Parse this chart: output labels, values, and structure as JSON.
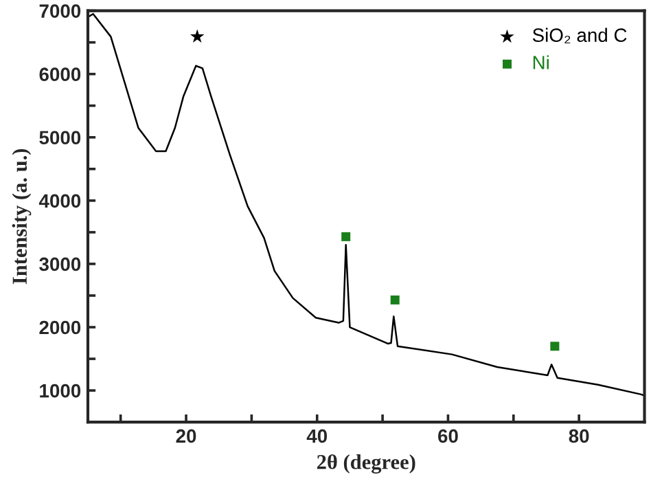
{
  "chart_data": {
    "type": "line",
    "xlabel": "2θ (degree)",
    "ylabel": "Intensity (a. u.)",
    "xlim": [
      5,
      90
    ],
    "ylim": [
      500,
      7000
    ],
    "xticks": [
      {
        "value": 10,
        "label": null
      },
      20,
      {
        "value": 30,
        "label": null
      },
      40,
      {
        "value": 50,
        "label": null
      },
      60,
      {
        "value": 70,
        "label": null
      },
      80
    ],
    "yticks": [
      1000,
      {
        "value": 1500,
        "label": null
      },
      2000,
      {
        "value": 2500,
        "label": null
      },
      3000,
      {
        "value": 3500,
        "label": null
      },
      4000,
      {
        "value": 4500,
        "label": null
      },
      5000,
      {
        "value": 5500,
        "label": null
      },
      6000,
      {
        "value": 6500,
        "label": null
      },
      7000
    ],
    "grid": false,
    "legend": "top right",
    "series": [
      {
        "color": "#000000",
        "marker": "none",
        "line_style": "solid",
        "x": [
          5.0,
          5.8,
          8.5,
          10.6,
          12.7,
          15.4,
          16.9,
          18.3,
          19.6,
          21.5,
          22.5,
          23.8,
          26.7,
          29.4,
          31.9,
          33.5,
          36.3,
          39.8,
          43.3,
          44.0,
          44.4,
          45.0,
          50.8,
          51.3,
          51.7,
          52.3,
          60.6,
          67.5,
          75.2,
          75.8,
          76.7,
          82.9,
          89.4,
          90.0
        ],
        "values": [
          6900,
          6950,
          6590,
          5870,
          5150,
          4780,
          4780,
          5150,
          5650,
          6130,
          6090,
          5650,
          4720,
          3910,
          3410,
          2890,
          2460,
          2150,
          2070,
          2100,
          3300,
          2000,
          1740,
          1750,
          2170,
          1700,
          1570,
          1370,
          1240,
          1410,
          1200,
          1090,
          940,
          920
        ]
      },
      {
        "type": "scatter",
        "name": "SiO₂ and C",
        "color": "#000000",
        "marker": "star",
        "x": [
          21.7
        ],
        "values": [
          6590
        ]
      },
      {
        "type": "scatter",
        "name": "Ni",
        "color": "#1a7f1a",
        "marker": "square",
        "x": [
          44.4,
          51.9,
          76.3
        ],
        "values": [
          3430,
          2430,
          1700
        ]
      }
    ]
  }
}
